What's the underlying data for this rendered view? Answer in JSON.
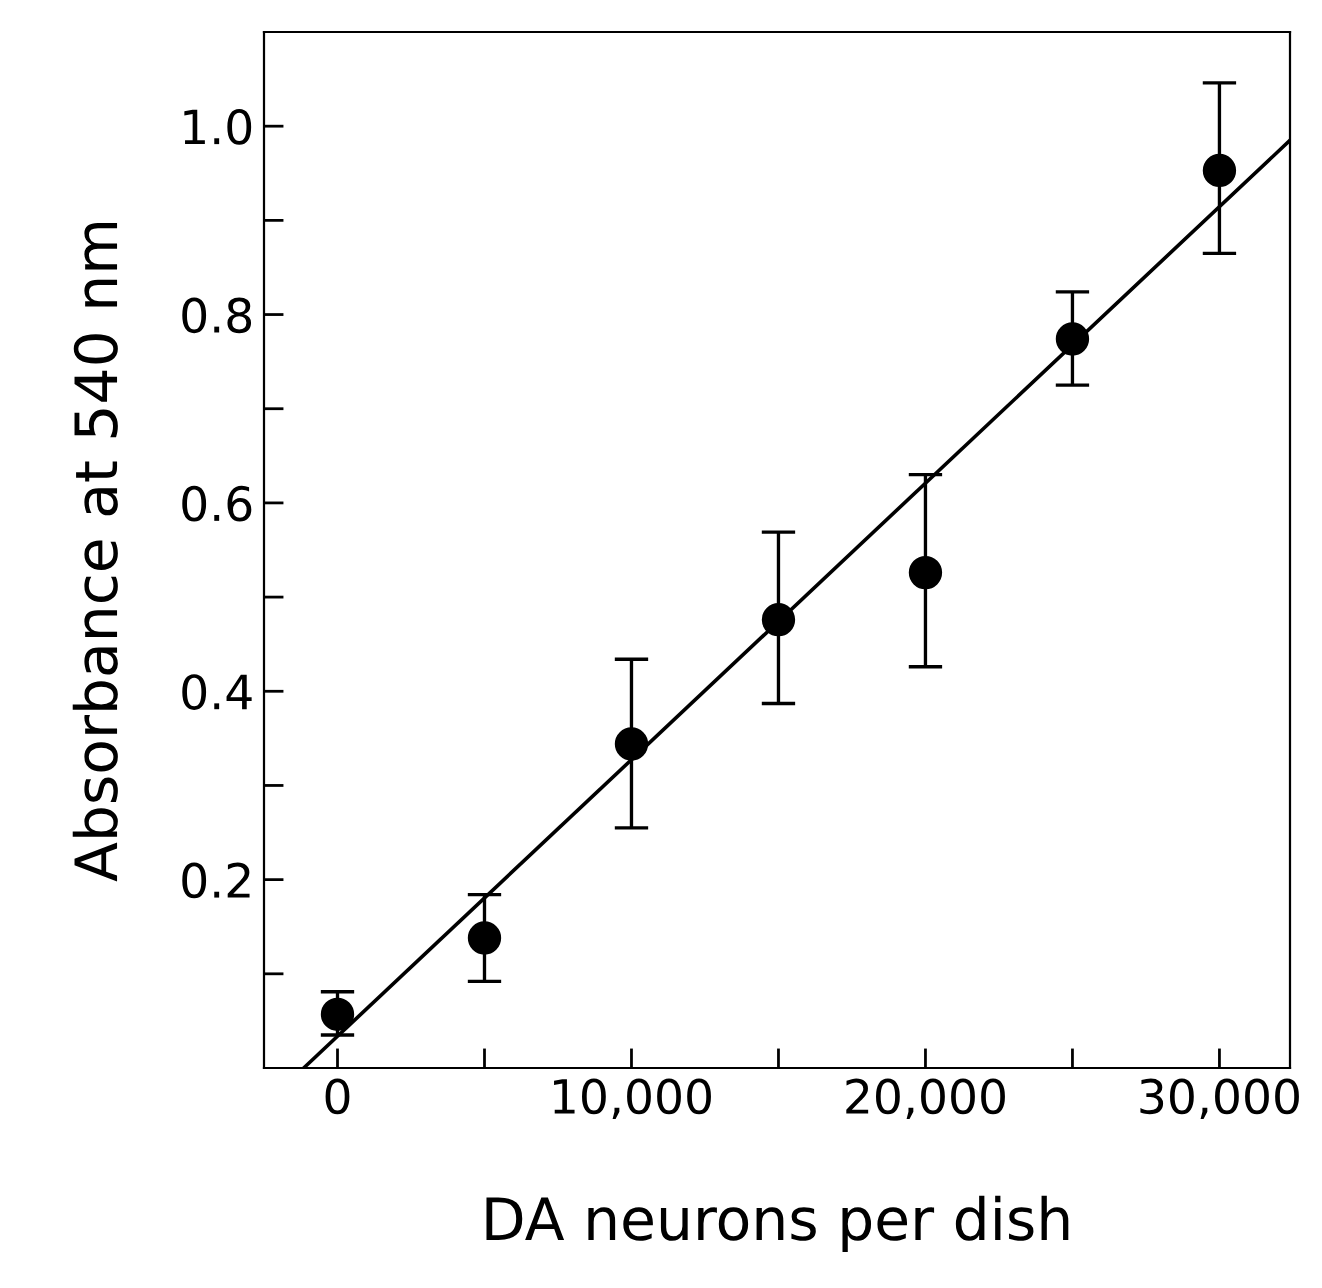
{
  "chart_data": {
    "type": "scatter",
    "xlabel": "DA neurons per dish",
    "ylabel": "Absorbance at 540 nm",
    "xlim": [
      -2500,
      32400
    ],
    "ylim": [
      0,
      1.1
    ],
    "xticks": [
      {
        "value": 0,
        "label": "0"
      },
      {
        "value": 5000,
        "label": null
      },
      {
        "value": 10000,
        "label": "10,000"
      },
      {
        "value": 15000,
        "label": null
      },
      {
        "value": 20000,
        "label": "20,000"
      },
      {
        "value": 25000,
        "label": null
      },
      {
        "value": 30000,
        "label": "30,000"
      }
    ],
    "yticks": [
      {
        "value": 0.1,
        "label": null
      },
      0.2,
      {
        "value": 0.3,
        "label": null
      },
      0.4,
      {
        "value": 0.5,
        "label": null
      },
      0.6,
      {
        "value": 0.7,
        "label": null
      },
      0.8,
      {
        "value": 0.9,
        "label": null
      },
      {
        "value": 1.0,
        "label": "1.0"
      }
    ],
    "grid": false,
    "legend": false,
    "series": [
      {
        "color": "#000000",
        "marker": "circle",
        "x": [
          0,
          5000,
          10000,
          15000,
          20000,
          25000,
          30000
        ],
        "values": [
          0.057,
          0.138,
          0.344,
          0.476,
          0.526,
          0.774,
          0.953
        ],
        "errors": [
          [
            0.035,
            0.081
          ],
          [
            0.092,
            0.184
          ],
          [
            0.255,
            0.434
          ],
          [
            0.387,
            0.569
          ],
          [
            0.426,
            0.63
          ],
          [
            0.725,
            0.824
          ],
          [
            0.865,
            1.046
          ]
        ]
      },
      {
        "type": "line",
        "color": "#000000",
        "marker": "none",
        "line_style": "solid",
        "x": [
          -1150,
          32400
        ],
        "values": [
          0,
          0.985
        ]
      }
    ]
  }
}
